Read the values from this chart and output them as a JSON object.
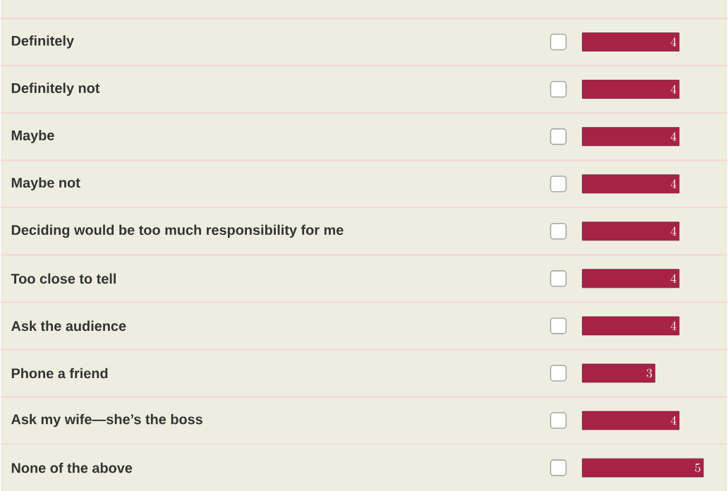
{
  "chart_data": {
    "type": "bar",
    "orientation": "horizontal",
    "categories": [
      "Definitely",
      "Definitely not",
      "Maybe",
      "Maybe not",
      "Deciding would be too much responsibility for me",
      "Too close to tell",
      "Ask the audience",
      "Phone a friend",
      "Ask my wife—she’s the boss",
      "None of the above"
    ],
    "values": [
      4,
      4,
      4,
      4,
      4,
      4,
      4,
      3,
      4,
      5
    ],
    "color": "#a82246",
    "xlim": [
      0,
      5
    ],
    "data_labels": true
  }
}
